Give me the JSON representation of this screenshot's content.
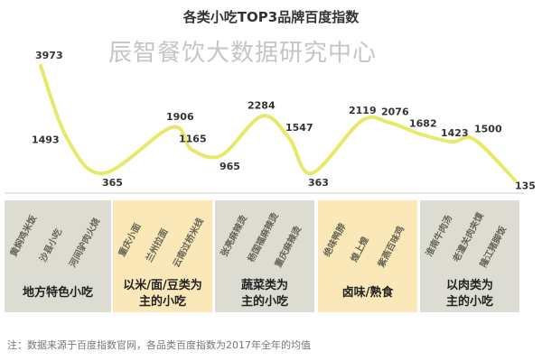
{
  "chart_data": {
    "type": "line",
    "title": "各类小吃TOP3品牌百度指数",
    "categories": [
      "黄焖鸡米饭",
      "沙县小吃",
      "河间驴肉火烧",
      "重庆小面",
      "兰州拉面",
      "云南过桥米线",
      "张亮麻辣烫",
      "杨国福麻辣烫",
      "重庆麻辣烫",
      "绝味鸭脖",
      "煌上煌",
      "紫燕百味鸡",
      "淮南牛肉汤",
      "老潼关肉夹馍",
      "隆江猪脚饭"
    ],
    "values": [
      3973,
      1493,
      365,
      1906,
      1165,
      965,
      2284,
      1547,
      363,
      2119,
      2076,
      1682,
      1423,
      1500,
      135
    ],
    "groups": [
      {
        "label": "地方特色小吃",
        "color": "#dcdcd2"
      },
      {
        "label": "以米/面/豆类为主的小吃",
        "color": "#fbe8b8"
      },
      {
        "label": "蔬菜类为主的小吃",
        "color": "#dcdcd2"
      },
      {
        "label": "卤味/熟食",
        "color": "#fbe8b8"
      },
      {
        "label": "以肉类为主的小吃",
        "color": "#dcdcd2"
      }
    ],
    "line_color": "#e8e86a",
    "grid": false,
    "note": "注：数据来源于百度指数官网，各品类百度指数为2017年全年的均值",
    "watermark": "辰智餐饮大数据研究中心"
  }
}
